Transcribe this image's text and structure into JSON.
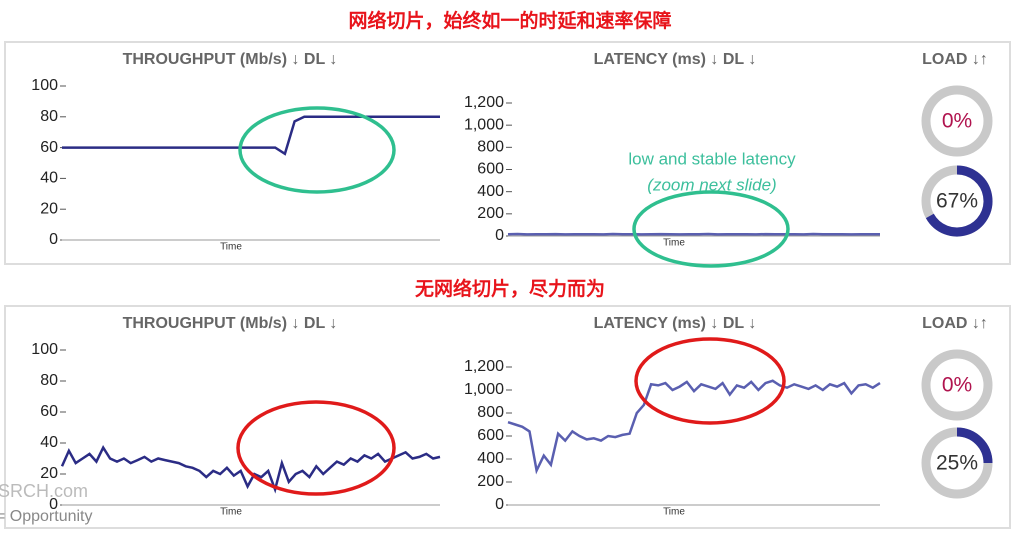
{
  "headings": [
    "网络切片，始终如一的时延和速率保障",
    "无网络切片，尽力而为"
  ],
  "watermark": [
    "SRCH.com",
    "= Opportunity"
  ],
  "chart_data": [
    {
      "type": "line",
      "title": "THROUGHPUT (Mb/s) ↓ DL ↓",
      "x_label": "Time",
      "color": "#2b2c85",
      "ylim": [
        0,
        100
      ],
      "yticks": [
        0,
        20,
        40,
        60,
        80,
        100
      ],
      "values": [
        60,
        60,
        60,
        60,
        60,
        60,
        60,
        60,
        60,
        60,
        60,
        60,
        60,
        60,
        60,
        60,
        60,
        60,
        60,
        60,
        60,
        60,
        60,
        56,
        77,
        80,
        80,
        80,
        80,
        80,
        80,
        80,
        80,
        80,
        80,
        80,
        80,
        80,
        80,
        80
      ]
    },
    {
      "type": "line",
      "title": "LATENCY (ms) ↓ DL ↓",
      "x_label": "Time",
      "color": "#5a5fb0",
      "ylim": [
        0,
        1200
      ],
      "yticks": [
        0,
        200,
        400,
        600,
        800,
        {
          "value": 1000,
          "label": "1,000"
        },
        {
          "value": 1200,
          "label": "1,200"
        }
      ],
      "annotations": [
        "low and  stable latency",
        "(zoom next slide)"
      ],
      "values": [
        15,
        18,
        14,
        16,
        15,
        17,
        14,
        15,
        16,
        15,
        14,
        18,
        15,
        16,
        14,
        15,
        17,
        15,
        14,
        16,
        15,
        18,
        14,
        15,
        16,
        15,
        14,
        17,
        15,
        16,
        15,
        14,
        18,
        15,
        16,
        15,
        14,
        15,
        16,
        15
      ]
    },
    {
      "type": "gauge",
      "title": "LOAD ↓↑",
      "color": "#2e3192",
      "values": [
        0,
        67
      ],
      "value_labels": [
        "0%",
        "67%"
      ]
    },
    {
      "type": "line",
      "title": "THROUGHPUT (Mb/s) ↓ DL ↓",
      "x_label": "Time",
      "color": "#2b2c85",
      "ylim": [
        0,
        100
      ],
      "yticks": [
        0,
        20,
        40,
        60,
        80,
        100
      ],
      "values": [
        25,
        35,
        27,
        30,
        33,
        28,
        37,
        30,
        28,
        30,
        27,
        29,
        31,
        28,
        30,
        29,
        28,
        27,
        25,
        24,
        22,
        18,
        22,
        20,
        24,
        19,
        22,
        12,
        20,
        18,
        22,
        10,
        27,
        15,
        20,
        22,
        18,
        25,
        20,
        24,
        28,
        26,
        30,
        28,
        32,
        30,
        33,
        28,
        30,
        32,
        34,
        30,
        31,
        33,
        30,
        31
      ]
    },
    {
      "type": "line",
      "title": "LATENCY (ms) ↓ DL ↓",
      "x_label": "Time",
      "color": "#5a5fb0",
      "ylim": [
        0,
        1200
      ],
      "yticks": [
        0,
        200,
        400,
        600,
        800,
        {
          "value": 1000,
          "label": "1,000"
        },
        {
          "value": 1200,
          "label": "1,200"
        }
      ],
      "values": [
        720,
        700,
        680,
        640,
        300,
        430,
        350,
        620,
        560,
        640,
        600,
        570,
        580,
        560,
        600,
        590,
        610,
        620,
        800,
        870,
        1050,
        1040,
        1060,
        1000,
        1030,
        1070,
        990,
        1050,
        1030,
        1010,
        1060,
        960,
        1040,
        1020,
        1070,
        1000,
        1060,
        1080,
        1040,
        1020,
        1050,
        1030,
        1010,
        1040,
        1000,
        1050,
        1030,
        1060,
        970,
        1040,
        1050,
        1020,
        1060
      ]
    },
    {
      "type": "gauge",
      "title": "LOAD ↓↑",
      "color": "#2e3192",
      "values": [
        0,
        25
      ],
      "value_labels": [
        "0%",
        "25%"
      ]
    }
  ]
}
